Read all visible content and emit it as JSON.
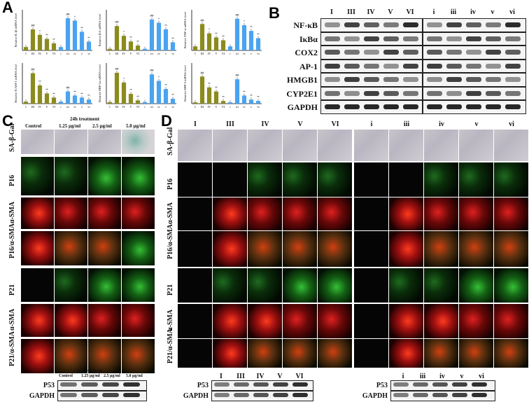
{
  "panels": {
    "a": "A",
    "b": "B",
    "c": "C",
    "d": "D"
  },
  "chart_data": [
    {
      "type": "bar",
      "ylabel": "Relative IL1β mRNA level",
      "categories": [
        "I",
        "III",
        "IV",
        "V",
        "VI",
        "i",
        "iii",
        "iv",
        "v",
        "vi"
      ],
      "values": [
        1,
        6.2,
        4.6,
        3.4,
        2.1,
        1,
        9.5,
        8.8,
        5.5,
        2.6
      ],
      "ylim": [
        0,
        12
      ],
      "markers": [
        "",
        "##",
        "*",
        "**",
        "**",
        "",
        "##",
        "*",
        "**",
        "**"
      ]
    },
    {
      "type": "bar",
      "ylabel": "Relative IL6 mRNA level",
      "categories": [
        "I",
        "III",
        "IV",
        "V",
        "VI",
        "i",
        "iii",
        "iv",
        "v",
        "vi"
      ],
      "values": [
        1,
        15,
        9,
        5.5,
        3,
        1,
        19,
        17,
        13,
        5
      ],
      "ylim": [
        0,
        25
      ],
      "markers": [
        "",
        "##",
        "*",
        "**",
        "**",
        "",
        "##",
        "*",
        "**",
        "**"
      ]
    },
    {
      "type": "bar",
      "ylabel": "Relative TNF-α mRNA level",
      "categories": [
        "I",
        "III",
        "IV",
        "V",
        "VI",
        "i",
        "iii",
        "iv",
        "v",
        "vi"
      ],
      "values": [
        1,
        6.5,
        4.2,
        3.2,
        2.5,
        1,
        7.8,
        6.2,
        4.8,
        3
      ],
      "ylim": [
        0,
        10
      ],
      "markers": [
        "",
        "##",
        "*",
        "**",
        "**",
        "",
        "##",
        "*",
        "**",
        "**"
      ]
    },
    {
      "type": "bar",
      "ylabel": "Relative ICAM-1 mRNA level",
      "categories": [
        "I",
        "III",
        "IV",
        "V",
        "VI",
        "i",
        "iii",
        "iv",
        "v",
        "vi"
      ],
      "values": [
        1,
        15,
        9,
        5,
        3,
        1,
        6,
        4,
        3,
        2
      ],
      "ylim": [
        0,
        20
      ],
      "markers": [
        "",
        "##",
        "**",
        "**",
        "**",
        "",
        "##",
        "**",
        "**",
        "**"
      ]
    },
    {
      "type": "bar",
      "ylabel": "Relative MIP-1α mRNA level",
      "categories": [
        "I",
        "III",
        "IV",
        "V",
        "VI",
        "i",
        "iii",
        "iv",
        "v",
        "vi"
      ],
      "values": [
        1,
        19,
        13,
        6,
        2,
        1,
        18,
        14,
        9,
        3
      ],
      "ylim": [
        0,
        25
      ],
      "markers": [
        "",
        "##",
        "*",
        "**",
        "**",
        "",
        "##",
        "*",
        "**",
        "**"
      ]
    },
    {
      "type": "bar",
      "ylabel": "Relative MIP-2 mRNA level",
      "categories": [
        "I",
        "III",
        "IV",
        "V",
        "VI",
        "i",
        "iii",
        "iv",
        "v",
        "vi"
      ],
      "values": [
        1,
        20,
        12,
        9,
        2,
        1,
        18,
        6,
        3,
        2
      ],
      "ylim": [
        0,
        30
      ],
      "markers": [
        "",
        "##",
        "**",
        "**",
        "**",
        "",
        "##",
        "**",
        "**",
        "**"
      ]
    }
  ],
  "blot_b": {
    "lanes_left": [
      "I",
      "III",
      "IV",
      "V",
      "VI"
    ],
    "lanes_right": [
      "i",
      "iii",
      "iv",
      "v",
      "vi"
    ],
    "proteins": [
      "NF-κB",
      "IκBα",
      "COX2",
      "AP-1",
      "HMGB1",
      "CYP2E1",
      "GAPDH"
    ]
  },
  "panel_c": {
    "treatment": "24h treatment",
    "columns": [
      "Control",
      "1.25 μg/ml",
      "2.5 μg/ml",
      "5.0 μg/ml"
    ],
    "rows": [
      "SA-β-Gal",
      "P16",
      "α-SMA",
      "P16/α-SMA",
      "P21",
      "α-SMA",
      "P21/α-SMA"
    ],
    "blot_labels": [
      "P53",
      "GAPDH"
    ],
    "bottom_columns": [
      "Control",
      "1.25 μg/ml",
      "2.5 μg/ml",
      "5.0 μg/ml"
    ],
    "bottom_treatment": "24h treatment"
  },
  "panel_d": {
    "cols_left": [
      "I",
      "III",
      "IV",
      "V",
      "VI"
    ],
    "cols_right": [
      "i",
      "iii",
      "iv",
      "v",
      "vi"
    ],
    "rows": [
      "SA-β-Gal",
      "P16",
      "α-SMA",
      "P16/α-SMA",
      "P21",
      "α-SMA",
      "P21/α-SMA"
    ],
    "blot_labels": [
      "P53",
      "GAPDH"
    ]
  }
}
